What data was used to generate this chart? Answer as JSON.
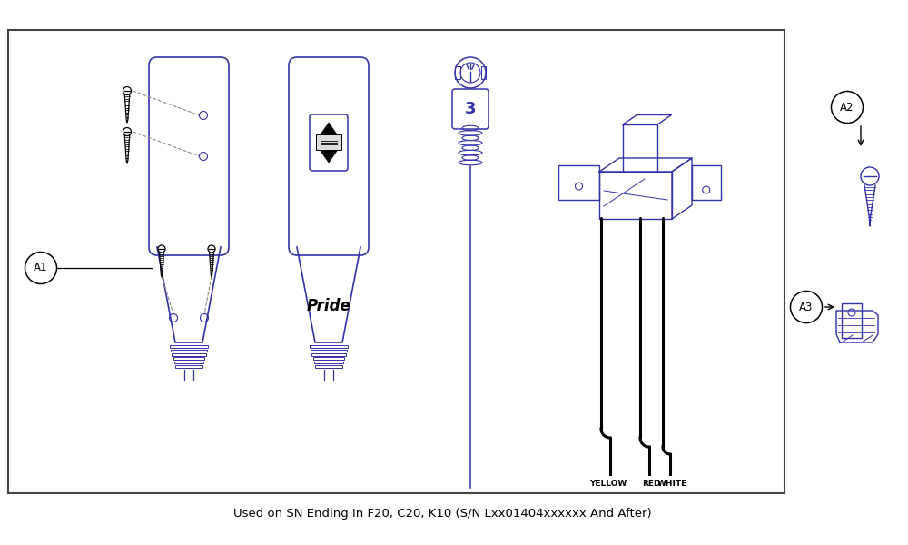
{
  "subtitle": "Used on SN Ending In F20, C20, K10 (S/N Lxx01404xxxxxx And After)",
  "blue": "#3333aa",
  "black": "#000000",
  "gray": "#888888",
  "lightblue": "#8888cc",
  "bg": "#ffffff",
  "border": "#444444",
  "label_A1": "A1",
  "label_A2": "A2",
  "label_A3": "A3",
  "yellow_label": "YELLOW",
  "red_label": "RED",
  "white_label": "WHITE",
  "pride_text": "Pride"
}
